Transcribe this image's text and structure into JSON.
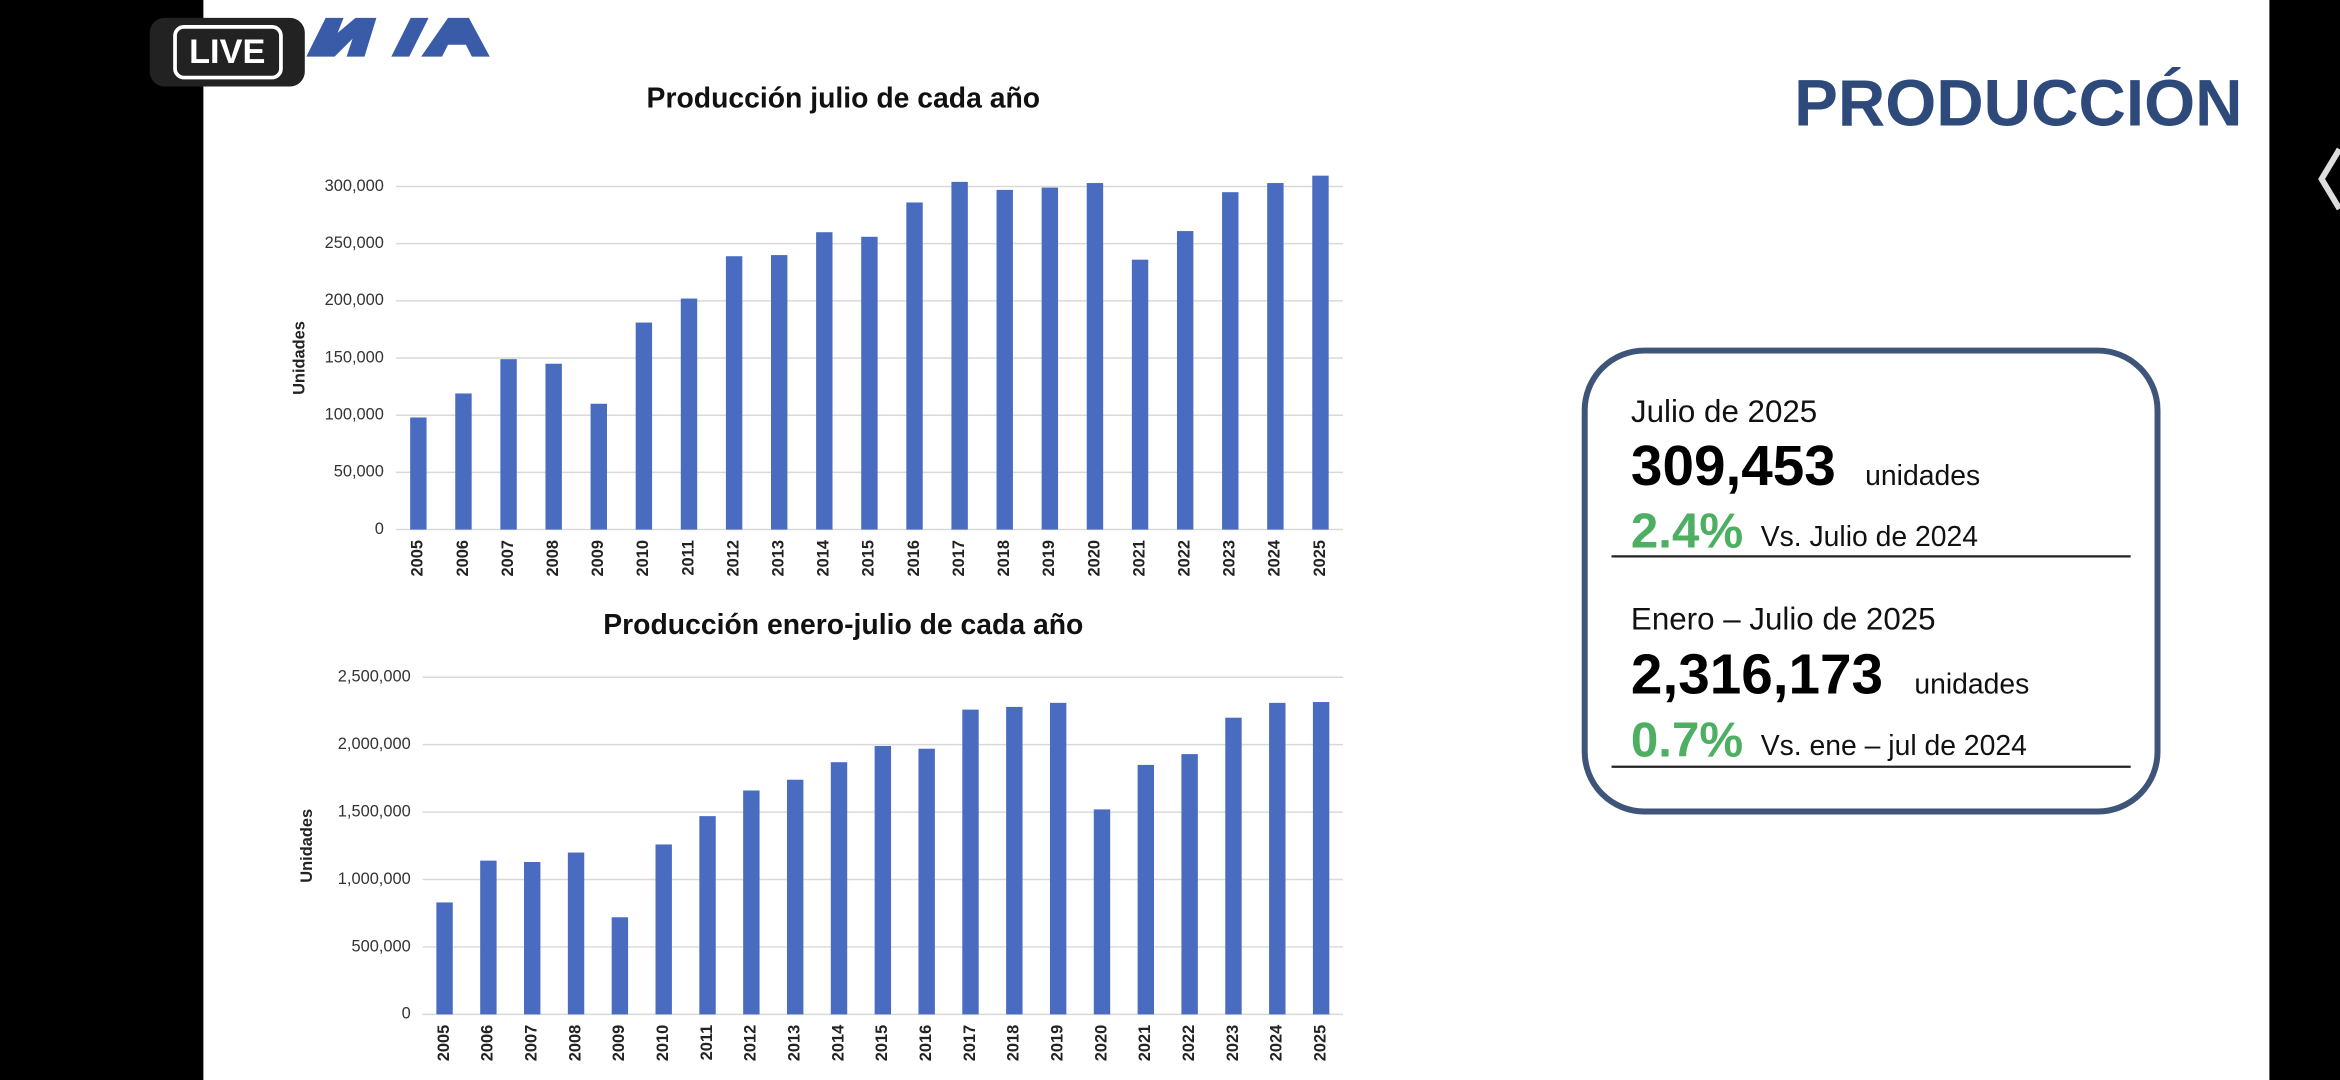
{
  "live_badge": "LIVE",
  "slide_title": "PRODUCCIÓN",
  "summary": {
    "month": {
      "heading": "Julio de 2025",
      "value": "309,453",
      "unit": "unidades",
      "change": "2.4%",
      "comparison": "Vs. Julio de 2024"
    },
    "year_to_date": {
      "heading": "Enero – Julio de 2025",
      "value": "2,316,173",
      "unit": "unidades",
      "change": "0.7%",
      "comparison": "Vs. ene – jul de 2024"
    }
  },
  "chart_data": [
    {
      "type": "bar",
      "title": "Producción julio de cada año",
      "y_label": "Unidades",
      "color": "#4a6cc0",
      "grid": true,
      "categories": [
        "2005",
        "2006",
        "2007",
        "2008",
        "2009",
        "2010",
        "2011",
        "2012",
        "2013",
        "2014",
        "2015",
        "2016",
        "2017",
        "2018",
        "2019",
        "2020",
        "2021",
        "2022",
        "2023",
        "2024",
        "2025"
      ],
      "values": [
        98000,
        119000,
        149000,
        145000,
        110000,
        181000,
        202000,
        239000,
        240000,
        260000,
        256000,
        286000,
        304000,
        297000,
        299000,
        303000,
        236000,
        261000,
        295000,
        303000,
        309453
      ],
      "ylim": [
        0,
        300000
      ],
      "yticks": [
        0,
        {
          "value": 50000,
          "label": "50,000"
        },
        {
          "value": 100000,
          "label": "100,000"
        },
        {
          "value": 150000,
          "label": "150,000"
        },
        {
          "value": 200000,
          "label": "200,000"
        },
        {
          "value": 250000,
          "label": "250,000"
        },
        {
          "value": 300000,
          "label": "300,000"
        }
      ]
    },
    {
      "type": "bar",
      "title": "Producción enero-julio de cada año",
      "y_label": "Unidades",
      "color": "#4a6cc0",
      "grid": true,
      "categories": [
        "2005",
        "2006",
        "2007",
        "2008",
        "2009",
        "2010",
        "2011",
        "2012",
        "2013",
        "2014",
        "2015",
        "2016",
        "2017",
        "2018",
        "2019",
        "2020",
        "2021",
        "2022",
        "2023",
        "2024",
        "2025"
      ],
      "values": [
        830000,
        1140000,
        1130000,
        1200000,
        720000,
        1260000,
        1470000,
        1660000,
        1740000,
        1870000,
        1990000,
        1970000,
        2260000,
        2280000,
        2310000,
        1520000,
        1850000,
        1930000,
        2200000,
        2310000,
        2316173
      ],
      "ylim": [
        0,
        2500000
      ],
      "yticks": [
        0,
        {
          "value": 500000,
          "label": "500,000"
        },
        {
          "value": 1000000,
          "label": "1,000,000"
        },
        {
          "value": 1500000,
          "label": "1,500,000"
        },
        {
          "value": 2000000,
          "label": "2,000,000"
        },
        {
          "value": 2500000,
          "label": "2,500,000"
        }
      ]
    }
  ]
}
